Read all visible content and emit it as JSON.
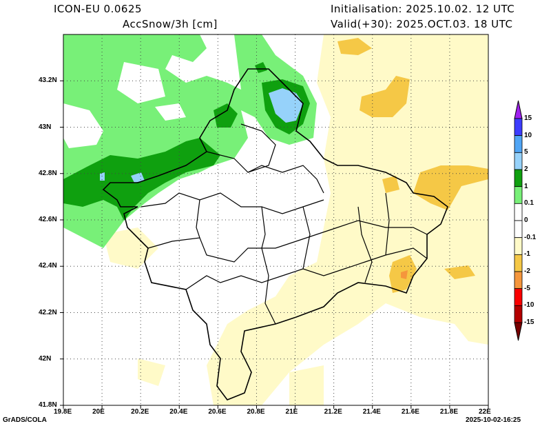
{
  "header": {
    "model": "ICON-EU 0.0625",
    "variable": "AccSnow/3h [cm]",
    "initialisation": "Initialisation: 2025.10.02. 12 UTC",
    "valid": "Valid(+30): 2025.OCT.03. 18 UTC"
  },
  "map": {
    "lon_ticks": [
      "19.8E",
      "20E",
      "20.2E",
      "20.4E",
      "20.6E",
      "20.8E",
      "21E",
      "21.2E",
      "21.4E",
      "21.6E",
      "21.8E",
      "22E"
    ],
    "lat_ticks": [
      "41.8N",
      "42N",
      "42.2N",
      "42.4N",
      "42.6N",
      "42.8N",
      "43N",
      "43.2N"
    ],
    "lon_range": [
      19.8,
      22.0
    ],
    "lat_range": [
      41.8,
      43.4
    ]
  },
  "colorbar": {
    "labels": [
      "15",
      "10",
      "5",
      "2",
      "1",
      "0.1",
      "0",
      "-0.1",
      "-1",
      "-2",
      "-5",
      "-10",
      "-15"
    ],
    "colors": [
      "#a020f0",
      "#3c3cff",
      "#50a5f5",
      "#96d2fa",
      "#0fa00f",
      "#78f078",
      "#ffffff",
      "#ffffff",
      "#fffac8",
      "#f5c846",
      "#f5963c",
      "#fa0000",
      "#b40000",
      "#780000"
    ]
  },
  "footer": {
    "left": "GrADS/COLA",
    "right": "2025-10-02-16:25"
  }
}
